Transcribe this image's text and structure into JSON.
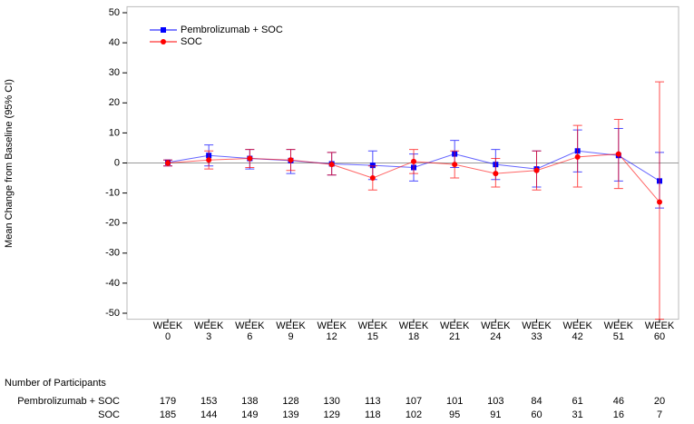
{
  "chart_data": {
    "type": "line",
    "y_label": "Mean Change from Baseline (95% CI)",
    "categories": [
      "WEEK 0",
      "WEEK 3",
      "WEEK 6",
      "WEEK 9",
      "WEEK 12",
      "WEEK 15",
      "WEEK 18",
      "WEEK 21",
      "WEEK 24",
      "WEEK 33",
      "WEEK 42",
      "WEEK 51",
      "WEEK 60"
    ],
    "series": [
      {
        "name": "Pembrolizumab + SOC",
        "color": "#0000ff",
        "values": [
          0.2,
          2.5,
          1.5,
          0.8,
          -0.3,
          -0.8,
          -1.5,
          3,
          -0.5,
          -2,
          4,
          2.5,
          -6
        ],
        "lower": [
          -1,
          -1,
          -2,
          -3.5,
          -4,
          -5.5,
          -6,
          -1.5,
          -5.5,
          -8,
          -3,
          -6,
          -15
        ],
        "upper": [
          1,
          6,
          4.5,
          4.5,
          3.5,
          4,
          3,
          7.5,
          4.5,
          4,
          11,
          11.5,
          3.5
        ]
      },
      {
        "name": "SOC",
        "color": "#ff0000",
        "values": [
          0,
          1,
          1.5,
          1,
          -0.5,
          -5,
          0.5,
          -0.5,
          -3.5,
          -2.5,
          2,
          3,
          -13
        ],
        "lower": [
          -1,
          -2,
          -1.5,
          -2.5,
          -4,
          -9,
          -3.5,
          -5,
          -8,
          -9,
          -8,
          -8.5,
          -52
        ],
        "upper": [
          1,
          4,
          4.5,
          4.5,
          3.5,
          -1,
          4.5,
          4,
          1.5,
          4,
          12.5,
          14.5,
          27
        ]
      }
    ],
    "ylim": [
      -52,
      52
    ],
    "yticks": [
      -50,
      -40,
      -30,
      -20,
      -10,
      0,
      10,
      20,
      30,
      40,
      50
    ],
    "participants": {
      "title": "Number of Participants",
      "rows": [
        {
          "label": "Pembrolizumab + SOC",
          "counts": [
            179,
            153,
            138,
            128,
            130,
            113,
            107,
            101,
            103,
            84,
            61,
            46,
            20
          ]
        },
        {
          "label": "SOC",
          "counts": [
            185,
            144,
            149,
            139,
            129,
            118,
            102,
            95,
            91,
            60,
            31,
            16,
            7
          ]
        }
      ]
    }
  }
}
